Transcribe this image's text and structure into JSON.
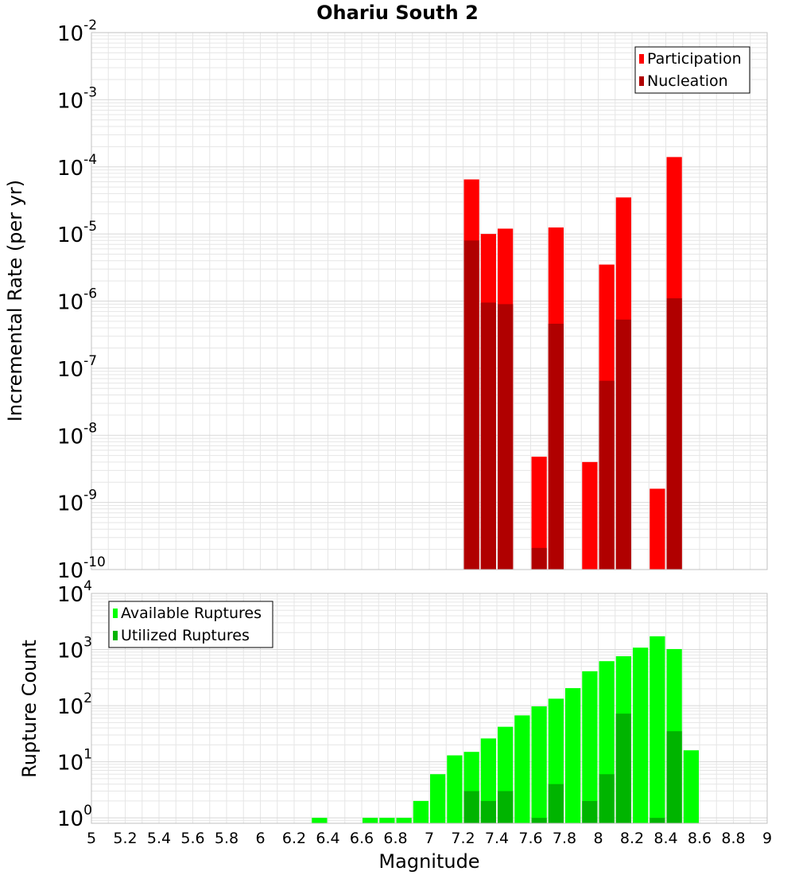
{
  "title": "Ohariu South 2",
  "colors": {
    "participation": "#ff0000",
    "nucleation": "#b00000",
    "available": "#00ff00",
    "utilized": "#00b400",
    "grid": "#e6e6e6",
    "frame": "#c0c0c0"
  },
  "chart_data": [
    {
      "type": "bar",
      "xlabel": "",
      "ylabel": "Incremental Rate (per yr)",
      "yscale": "log",
      "ylim": [
        1e-10,
        0.01
      ],
      "xlim": [
        5,
        9
      ],
      "bar_width": 0.1,
      "y_tick_exponents": [
        -10,
        -9,
        -8,
        -7,
        -6,
        -5,
        -4,
        -3,
        -2
      ],
      "legend": {
        "position": "top-right",
        "entries": [
          "Participation",
          "Nucleation"
        ]
      },
      "series": [
        {
          "name": "Participation",
          "color": "#ff0000",
          "x": [
            7.25,
            7.35,
            7.45,
            7.65,
            7.75,
            7.95,
            8.05,
            8.15,
            8.35,
            8.45
          ],
          "values": [
            6.5e-05,
            1e-05,
            1.2e-05,
            4.8e-09,
            1.25e-05,
            4e-09,
            3.5e-06,
            3.5e-05,
            1.6e-09,
            0.00014
          ]
        },
        {
          "name": "Nucleation",
          "color": "#b00000",
          "x": [
            7.25,
            7.35,
            7.45,
            7.65,
            7.75,
            8.05,
            8.15,
            8.45
          ],
          "values": [
            8e-06,
            9.5e-07,
            9e-07,
            2.1e-10,
            4.6e-07,
            6.5e-08,
            5.3e-07,
            1.1e-06
          ]
        }
      ]
    },
    {
      "type": "bar",
      "xlabel": "Magnitude",
      "ylabel": "Rupture Count",
      "yscale": "log",
      "ylim": [
        0.8,
        10000
      ],
      "xlim": [
        5,
        9
      ],
      "bar_width": 0.1,
      "y_tick_exponents": [
        0,
        1,
        2,
        3,
        4
      ],
      "x_ticks": [
        "5",
        "5.2",
        "5.4",
        "5.6",
        "5.8",
        "6",
        "6.2",
        "6.4",
        "6.6",
        "6.8",
        "7",
        "7.2",
        "7.4",
        "7.6",
        "7.8",
        "8",
        "8.2",
        "8.4",
        "8.6",
        "8.8",
        "9"
      ],
      "legend": {
        "position": "top-left",
        "entries": [
          "Available Ruptures",
          "Utilized Ruptures"
        ]
      },
      "series": [
        {
          "name": "Available Ruptures",
          "color": "#00ff00",
          "x": [
            6.35,
            6.65,
            6.75,
            6.85,
            6.95,
            7.05,
            7.15,
            7.25,
            7.35,
            7.45,
            7.55,
            7.65,
            7.75,
            7.85,
            7.95,
            8.05,
            8.15,
            8.25,
            8.35,
            8.45,
            8.55
          ],
          "values": [
            1,
            1,
            1,
            1,
            2,
            6,
            13,
            15,
            26,
            42,
            67,
            97,
            133,
            205,
            410,
            620,
            760,
            1080,
            1720,
            1020,
            16
          ]
        },
        {
          "name": "Utilized Ruptures",
          "color": "#00b400",
          "x": [
            7.25,
            7.35,
            7.45,
            7.65,
            7.75,
            7.95,
            8.05,
            8.15,
            8.35,
            8.45
          ],
          "values": [
            3,
            2,
            3,
            1,
            4,
            2,
            6,
            72,
            1,
            35
          ]
        }
      ]
    }
  ]
}
